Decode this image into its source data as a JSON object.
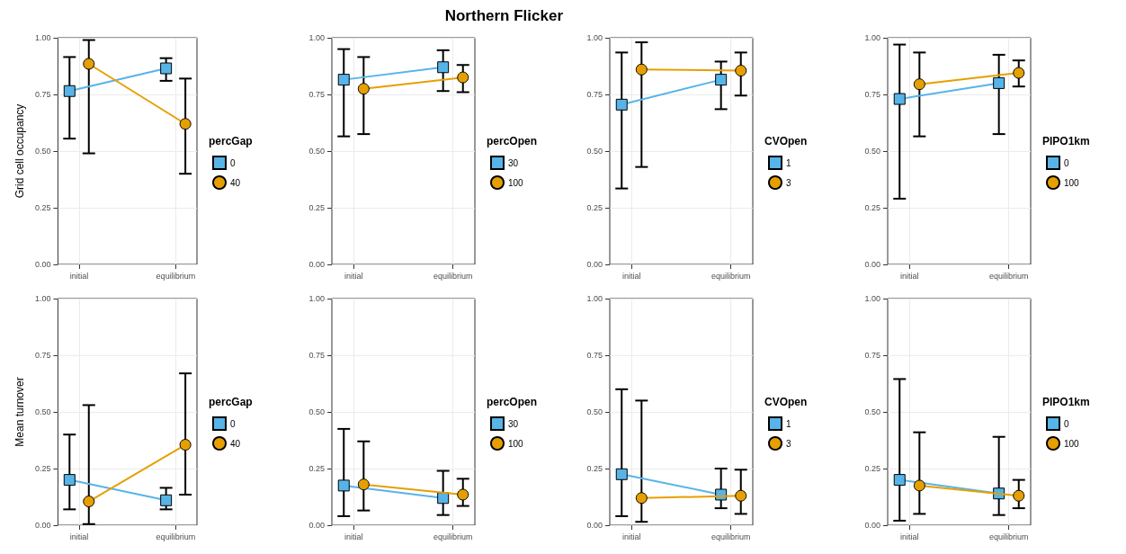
{
  "chart_data": [
    {
      "type": "line",
      "ylabel": "Grid cell occupancy",
      "legend_title": "percGap",
      "legend": "right",
      "grid": true,
      "categories": [
        "initial",
        "equilibrium"
      ],
      "ylim": [
        0,
        1
      ],
      "yticks": [
        {
          "value": 0,
          "label": "0.00"
        },
        {
          "value": 0.25,
          "label": "0.25"
        },
        {
          "value": 0.5,
          "label": "0.50"
        },
        {
          "value": 0.75,
          "label": "0.75"
        },
        {
          "value": 1,
          "label": "1.00"
        }
      ],
      "series": [
        {
          "name": "0",
          "color": "#56b4e9",
          "marker": "square",
          "values": [
            0.765,
            0.865
          ],
          "errors": [
            [
              0.555,
              0.915
            ],
            [
              0.81,
              0.91
            ]
          ]
        },
        {
          "name": "40",
          "color": "#e69f00",
          "marker": "circle",
          "values": [
            0.885,
            0.62
          ],
          "errors": [
            [
              0.49,
              0.99
            ],
            [
              0.4,
              0.82
            ]
          ]
        }
      ]
    },
    {
      "type": "line",
      "title": "Northern Flicker",
      "legend_title": "percOpen",
      "legend": "right",
      "grid": true,
      "categories": [
        "initial",
        "equilibrium"
      ],
      "ylim": [
        0,
        1
      ],
      "yticks": [
        {
          "value": 0,
          "label": "0.00"
        },
        {
          "value": 0.25,
          "label": "0.25"
        },
        {
          "value": 0.5,
          "label": "0.50"
        },
        {
          "value": 0.75,
          "label": "0.75"
        },
        {
          "value": 1,
          "label": "1.00"
        }
      ],
      "series": [
        {
          "name": "30",
          "color": "#56b4e9",
          "marker": "square",
          "values": [
            0.815,
            0.87
          ],
          "errors": [
            [
              0.565,
              0.95
            ],
            [
              0.765,
              0.945
            ]
          ]
        },
        {
          "name": "100",
          "color": "#e69f00",
          "marker": "circle",
          "values": [
            0.775,
            0.825
          ],
          "errors": [
            [
              0.575,
              0.915
            ],
            [
              0.76,
              0.88
            ]
          ]
        }
      ]
    },
    {
      "type": "line",
      "legend_title": "CVOpen",
      "legend": "right",
      "grid": true,
      "categories": [
        "initial",
        "equilibrium"
      ],
      "ylim": [
        0,
        1
      ],
      "yticks": [
        {
          "value": 0,
          "label": "0.00"
        },
        {
          "value": 0.25,
          "label": "0.25"
        },
        {
          "value": 0.5,
          "label": "0.50"
        },
        {
          "value": 0.75,
          "label": "0.75"
        },
        {
          "value": 1,
          "label": "1.00"
        }
      ],
      "series": [
        {
          "name": "1",
          "color": "#56b4e9",
          "marker": "square",
          "values": [
            0.705,
            0.815
          ],
          "errors": [
            [
              0.335,
              0.935
            ],
            [
              0.685,
              0.895
            ]
          ]
        },
        {
          "name": "3",
          "color": "#e69f00",
          "marker": "circle",
          "values": [
            0.86,
            0.855
          ],
          "errors": [
            [
              0.43,
              0.98
            ],
            [
              0.745,
              0.935
            ]
          ]
        }
      ]
    },
    {
      "type": "line",
      "legend_title": "PIPO1km",
      "legend": "right",
      "grid": true,
      "categories": [
        "initial",
        "equilibrium"
      ],
      "ylim": [
        0,
        1
      ],
      "yticks": [
        {
          "value": 0,
          "label": "0.00"
        },
        {
          "value": 0.25,
          "label": "0.25"
        },
        {
          "value": 0.5,
          "label": "0.50"
        },
        {
          "value": 0.75,
          "label": "0.75"
        },
        {
          "value": 1,
          "label": "1.00"
        }
      ],
      "series": [
        {
          "name": "0",
          "color": "#56b4e9",
          "marker": "square",
          "values": [
            0.73,
            0.8
          ],
          "errors": [
            [
              0.29,
              0.97
            ],
            [
              0.575,
              0.925
            ]
          ]
        },
        {
          "name": "100",
          "color": "#e69f00",
          "marker": "circle",
          "values": [
            0.795,
            0.845
          ],
          "errors": [
            [
              0.565,
              0.935
            ],
            [
              0.785,
              0.9
            ]
          ]
        }
      ]
    },
    {
      "type": "line",
      "ylabel": "Mean turnover",
      "legend_title": "percGap",
      "legend": "right",
      "grid": true,
      "categories": [
        "initial",
        "equilibrium"
      ],
      "ylim": [
        0,
        1
      ],
      "yticks": [
        {
          "value": 0,
          "label": "0.00"
        },
        {
          "value": 0.25,
          "label": "0.25"
        },
        {
          "value": 0.5,
          "label": "0.50"
        },
        {
          "value": 0.75,
          "label": "0.75"
        },
        {
          "value": 1,
          "label": "1.00"
        }
      ],
      "series": [
        {
          "name": "0",
          "color": "#56b4e9",
          "marker": "square",
          "values": [
            0.2,
            0.11
          ],
          "errors": [
            [
              0.07,
              0.4
            ],
            [
              0.07,
              0.165
            ]
          ]
        },
        {
          "name": "40",
          "color": "#e69f00",
          "marker": "circle",
          "values": [
            0.105,
            0.355
          ],
          "errors": [
            [
              0.005,
              0.53
            ],
            [
              0.135,
              0.67
            ]
          ]
        }
      ]
    },
    {
      "type": "line",
      "legend_title": "percOpen",
      "legend": "right",
      "grid": true,
      "categories": [
        "initial",
        "equilibrium"
      ],
      "ylim": [
        0,
        1
      ],
      "yticks": [
        {
          "value": 0,
          "label": "0.00"
        },
        {
          "value": 0.25,
          "label": "0.25"
        },
        {
          "value": 0.5,
          "label": "0.50"
        },
        {
          "value": 0.75,
          "label": "0.75"
        },
        {
          "value": 1,
          "label": "1.00"
        }
      ],
      "series": [
        {
          "name": "30",
          "color": "#56b4e9",
          "marker": "square",
          "values": [
            0.175,
            0.12
          ],
          "errors": [
            [
              0.04,
              0.425
            ],
            [
              0.045,
              0.24
            ]
          ]
        },
        {
          "name": "100",
          "color": "#e69f00",
          "marker": "circle",
          "values": [
            0.18,
            0.135
          ],
          "errors": [
            [
              0.065,
              0.37
            ],
            [
              0.085,
              0.205
            ]
          ]
        }
      ]
    },
    {
      "type": "line",
      "legend_title": "CVOpen",
      "legend": "right",
      "grid": true,
      "categories": [
        "initial",
        "equilibrium"
      ],
      "ylim": [
        0,
        1
      ],
      "yticks": [
        {
          "value": 0,
          "label": "0.00"
        },
        {
          "value": 0.25,
          "label": "0.25"
        },
        {
          "value": 0.5,
          "label": "0.50"
        },
        {
          "value": 0.75,
          "label": "0.75"
        },
        {
          "value": 1,
          "label": "1.00"
        }
      ],
      "series": [
        {
          "name": "1",
          "color": "#56b4e9",
          "marker": "square",
          "values": [
            0.225,
            0.135
          ],
          "errors": [
            [
              0.04,
              0.6
            ],
            [
              0.075,
              0.25
            ]
          ]
        },
        {
          "name": "3",
          "color": "#e69f00",
          "marker": "circle",
          "values": [
            0.12,
            0.13
          ],
          "errors": [
            [
              0.015,
              0.55
            ],
            [
              0.05,
              0.245
            ]
          ]
        }
      ]
    },
    {
      "type": "line",
      "legend_title": "PIPO1km",
      "legend": "right",
      "grid": true,
      "categories": [
        "initial",
        "equilibrium"
      ],
      "ylim": [
        0,
        1
      ],
      "yticks": [
        {
          "value": 0,
          "label": "0.00"
        },
        {
          "value": 0.25,
          "label": "0.25"
        },
        {
          "value": 0.5,
          "label": "0.50"
        },
        {
          "value": 0.75,
          "label": "0.75"
        },
        {
          "value": 1,
          "label": "1.00"
        }
      ],
      "series": [
        {
          "name": "0",
          "color": "#56b4e9",
          "marker": "square",
          "values": [
            0.2,
            0.14
          ],
          "errors": [
            [
              0.02,
              0.645
            ],
            [
              0.045,
              0.39
            ]
          ]
        },
        {
          "name": "100",
          "color": "#e69f00",
          "marker": "circle",
          "values": [
            0.175,
            0.13
          ],
          "errors": [
            [
              0.05,
              0.41
            ],
            [
              0.075,
              0.2
            ]
          ]
        }
      ]
    }
  ]
}
